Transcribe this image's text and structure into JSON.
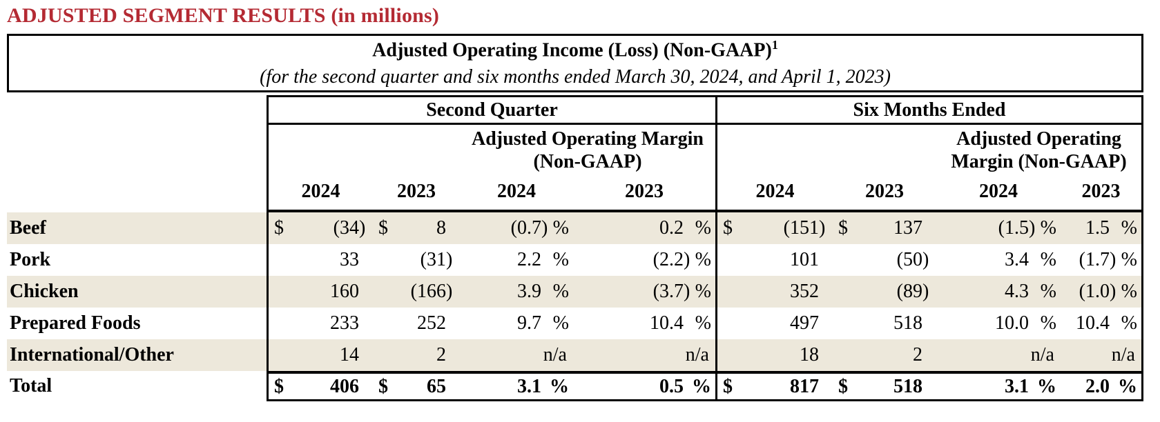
{
  "page_title": "ADJUSTED SEGMENT RESULTS (in millions)",
  "table_title": {
    "line1": "Adjusted Operating Income (Loss) (Non-GAAP)",
    "footnote_ref": "1",
    "line2": "(for the second quarter and six months ended March 30, 2024, and April 1, 2023)"
  },
  "table": {
    "period_headers": [
      "Second Quarter",
      "Six Months Ended"
    ],
    "margin_header": "Adjusted Operating Margin (Non-GAAP)",
    "years": [
      "2024",
      "2023",
      "2024",
      "2023",
      "2024",
      "2023",
      "2024",
      "2023"
    ],
    "currency_symbol": "$",
    "percent_symbol": "%",
    "na_label": "n/a",
    "rows": [
      {
        "label": "Beef",
        "shaded": true,
        "dollar": true,
        "total": false,
        "second_quarter": {
          "income_2024": "(34)",
          "income_2023": "8",
          "margin_2024": "(0.7)",
          "margin_2023": "0.2"
        },
        "six_months": {
          "income_2024": "(151)",
          "income_2023": "137",
          "margin_2024": "(1.5)",
          "margin_2023": "1.5"
        }
      },
      {
        "label": "Pork",
        "shaded": false,
        "dollar": false,
        "total": false,
        "second_quarter": {
          "income_2024": "33",
          "income_2023": "(31)",
          "margin_2024": "2.2",
          "margin_2023": "(2.2)"
        },
        "six_months": {
          "income_2024": "101",
          "income_2023": "(50)",
          "margin_2024": "3.4",
          "margin_2023": "(1.7)"
        }
      },
      {
        "label": "Chicken",
        "shaded": true,
        "dollar": false,
        "total": false,
        "second_quarter": {
          "income_2024": "160",
          "income_2023": "(166)",
          "margin_2024": "3.9",
          "margin_2023": "(3.7)"
        },
        "six_months": {
          "income_2024": "352",
          "income_2023": "(89)",
          "margin_2024": "4.3",
          "margin_2023": "(1.0)"
        }
      },
      {
        "label": "Prepared Foods",
        "shaded": false,
        "dollar": false,
        "total": false,
        "second_quarter": {
          "income_2024": "233",
          "income_2023": "252",
          "margin_2024": "9.7",
          "margin_2023": "10.4"
        },
        "six_months": {
          "income_2024": "497",
          "income_2023": "518",
          "margin_2024": "10.0",
          "margin_2023": "10.4"
        }
      },
      {
        "label": "International/Other",
        "shaded": true,
        "dollar": false,
        "total": false,
        "second_quarter": {
          "income_2024": "14",
          "income_2023": "2",
          "margin_2024": "n/a",
          "margin_2023": "n/a"
        },
        "six_months": {
          "income_2024": "18",
          "income_2023": "2",
          "margin_2024": "n/a",
          "margin_2023": "n/a"
        }
      },
      {
        "label": "Total",
        "shaded": false,
        "dollar": true,
        "total": true,
        "second_quarter": {
          "income_2024": "406",
          "income_2023": "65",
          "margin_2024": "3.1",
          "margin_2023": "0.5"
        },
        "six_months": {
          "income_2024": "817",
          "income_2023": "518",
          "margin_2024": "3.1",
          "margin_2023": "2.0"
        }
      }
    ]
  },
  "colors": {
    "heading_red": "#B42A33",
    "stripe_beige": "#EDE8DB",
    "border_black": "#000000"
  }
}
